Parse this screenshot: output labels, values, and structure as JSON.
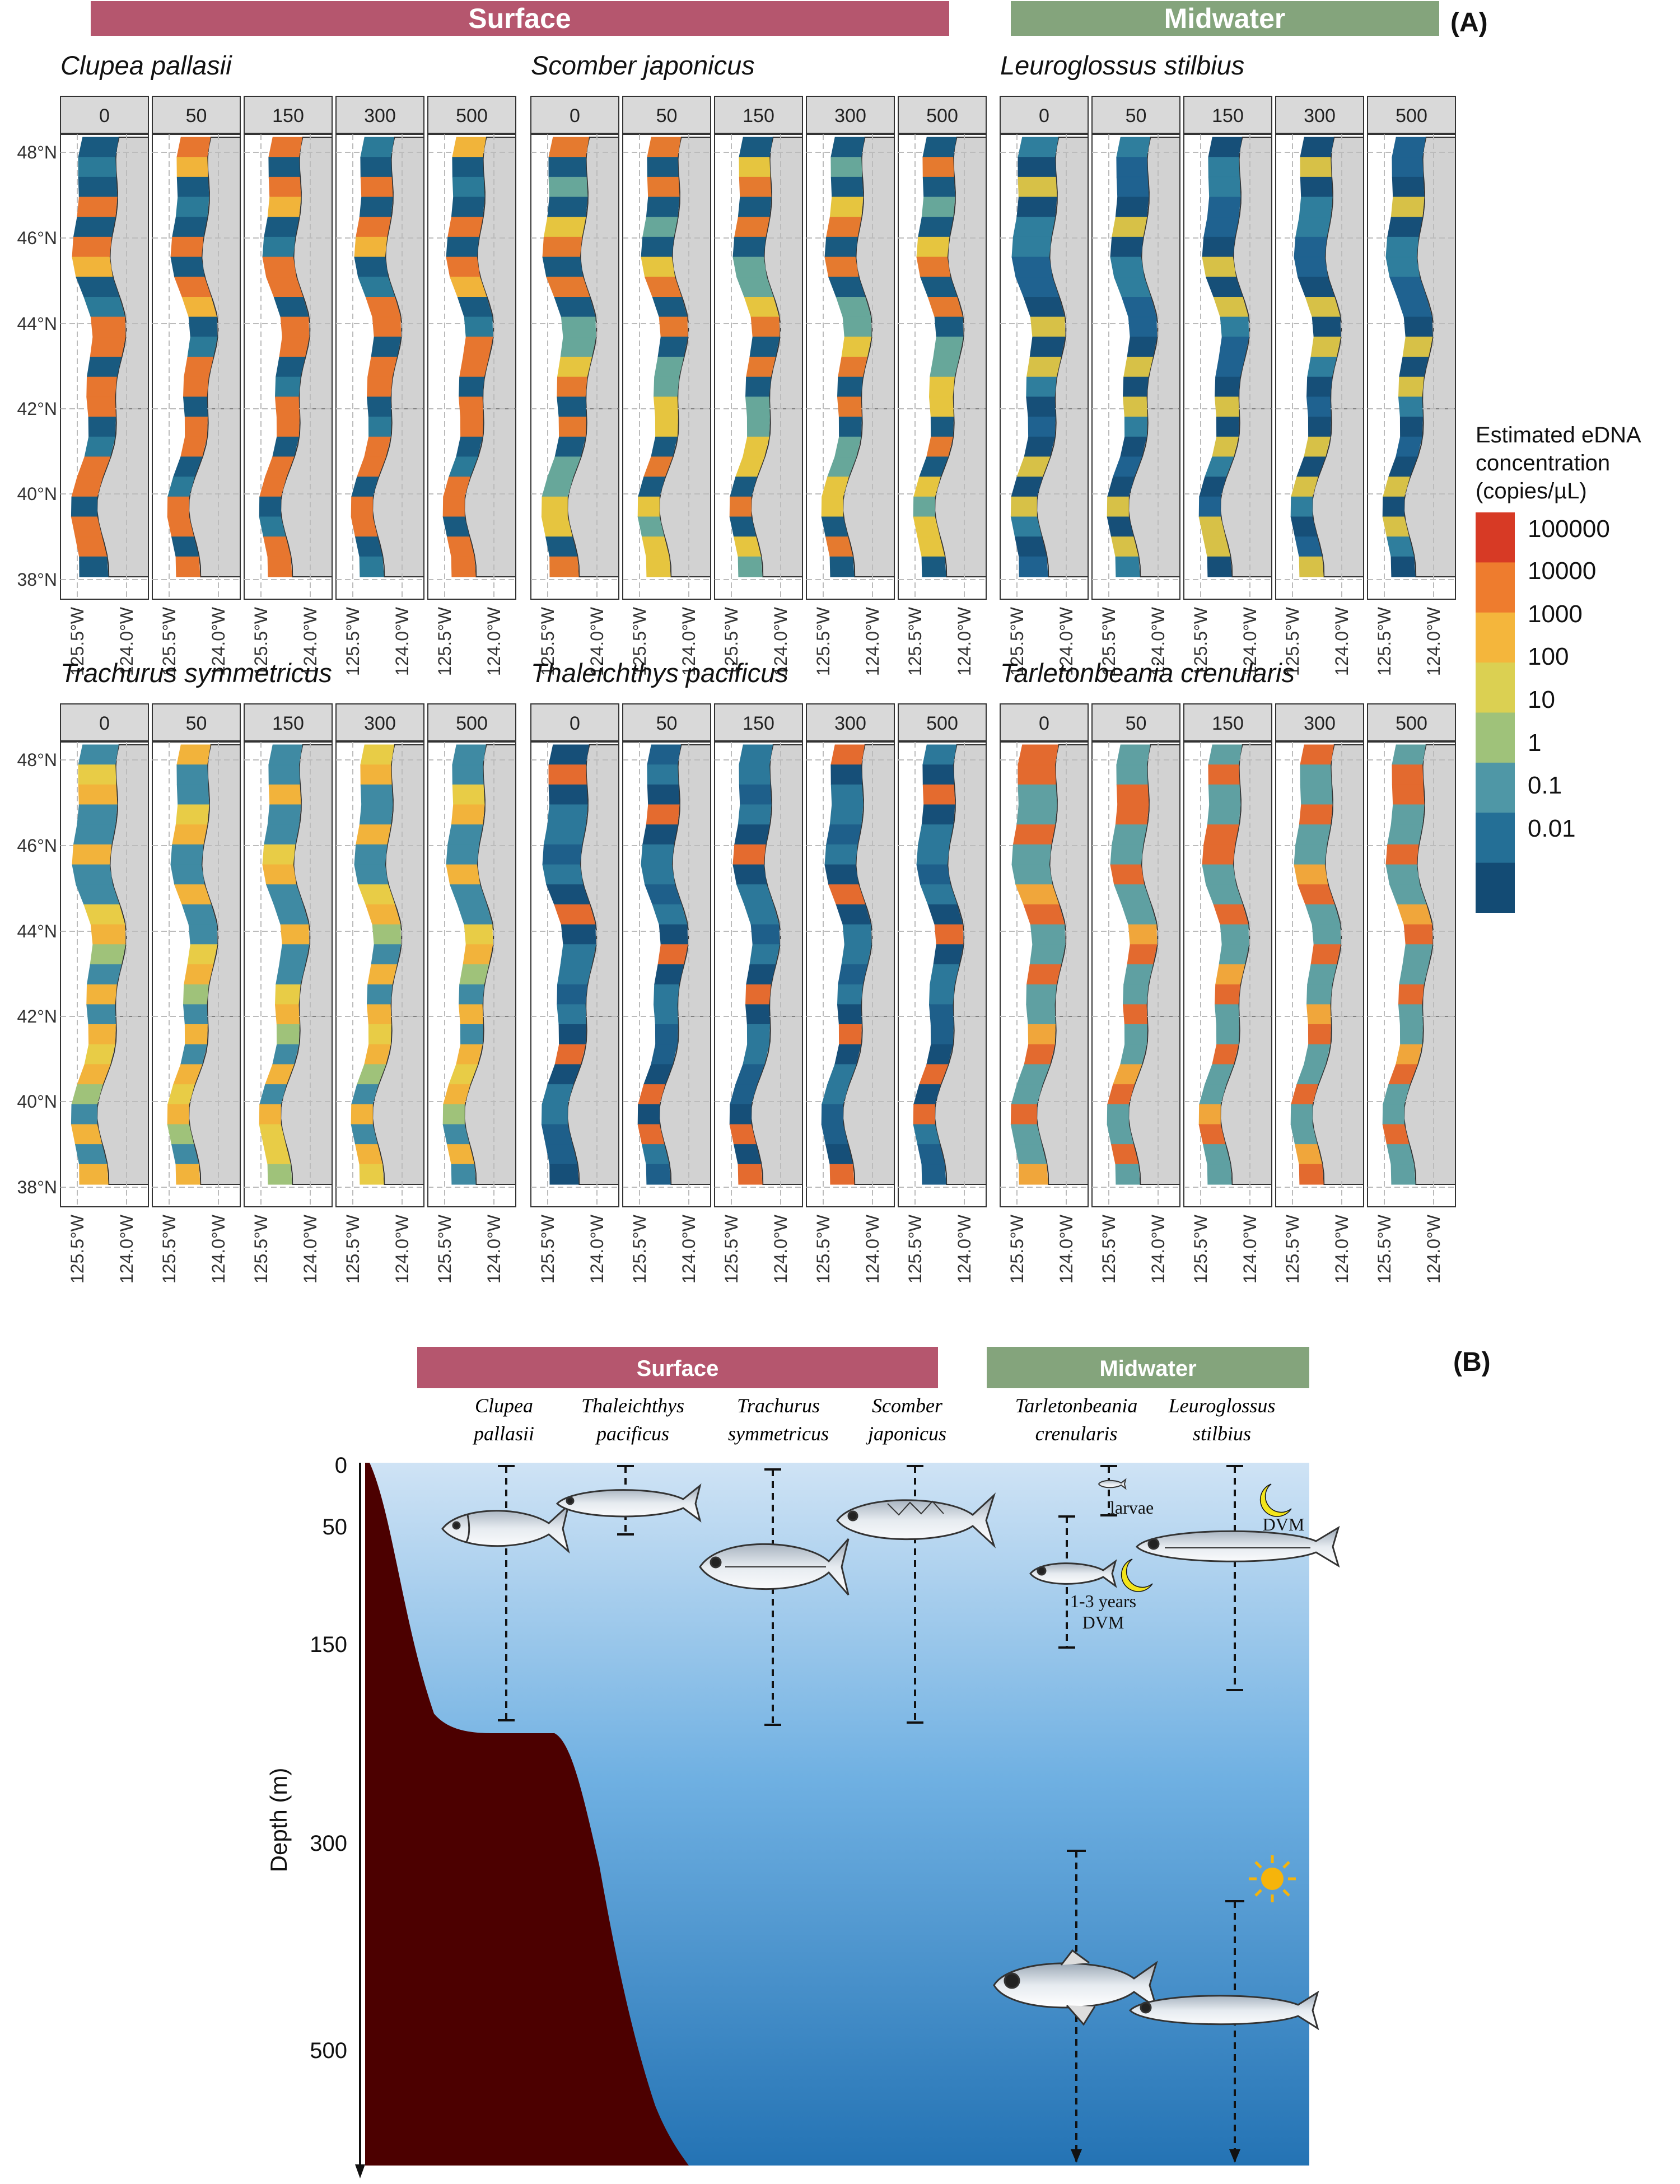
{
  "panel_a": {
    "panel_label": "(A)",
    "group_headers": [
      {
        "label": "Surface",
        "color": "#b5566e"
      },
      {
        "label": "Midwater",
        "color": "#84a47c"
      }
    ],
    "depth_facets": [
      "0",
      "50",
      "150",
      "300",
      "500"
    ],
    "lat_ticks": [
      "48°N",
      "46°N",
      "44°N",
      "42°N",
      "40°N",
      "38°N"
    ],
    "lon_ticks": [
      "125.5°W",
      "124.0°W"
    ],
    "species": [
      {
        "name": "Clupea pallasii",
        "row": 0,
        "col": 0,
        "palette": [
          "#195a80",
          "#2b7a98",
          "#f1b43a",
          "#e7762f"
        ]
      },
      {
        "name": "Scomber japonicus",
        "row": 0,
        "col": 1,
        "palette": [
          "#195a80",
          "#67a79a",
          "#e6c53f",
          "#e57a2f"
        ]
      },
      {
        "name": "Leuroglossus stilbius",
        "row": 0,
        "col": 2,
        "palette": [
          "#164f78",
          "#1f6290",
          "#2f7e9d",
          "#d7c147"
        ]
      },
      {
        "name": "Trachurus symmetricus",
        "row": 1,
        "col": 0,
        "palette": [
          "#f2b33b",
          "#e8cc46",
          "#9fc27a",
          "#3f8aa3"
        ]
      },
      {
        "name": "Thaleichthys pacificus",
        "row": 1,
        "col": 1,
        "palette": [
          "#164f78",
          "#1e5f8a",
          "#2c789a",
          "#e46b2f"
        ]
      },
      {
        "name": "Tarletonbeania crenularis",
        "row": 1,
        "col": 2,
        "palette": [
          "#e36a2f",
          "#f0a63b",
          "#d7cb4b",
          "#5fa0a2"
        ]
      }
    ],
    "legend": {
      "title": [
        "Estimated eDNA",
        "concentration",
        "(copies/µL)"
      ],
      "labels": [
        "100000",
        "10000",
        "1000",
        "100",
        "10",
        "1",
        "0.1",
        "0.01"
      ],
      "colors": [
        "#d73a25",
        "#ee7c2e",
        "#f4b63c",
        "#dbd052",
        "#9fc27a",
        "#4f97a6",
        "#246f96",
        "#134b74"
      ]
    }
  },
  "panel_b": {
    "panel_label": "(B)",
    "group_headers": [
      {
        "label": "Surface",
        "color": "#b5566e"
      },
      {
        "label": "Midwater",
        "color": "#84a47c"
      }
    ],
    "y_axis": {
      "label": "Depth (m)",
      "ticks": [
        "0",
        "50",
        "150",
        "300",
        "500"
      ]
    },
    "species": [
      {
        "line1": "Clupea",
        "line2": "pallasii"
      },
      {
        "line1": "Thaleichthys",
        "line2": "pacificus"
      },
      {
        "line1": "Trachurus",
        "line2": "symmetricus"
      },
      {
        "line1": "Scomber",
        "line2": "japonicus"
      },
      {
        "line1": "Tarletonbeania",
        "line2": "crenularis"
      },
      {
        "line1": "Leuroglossus",
        "line2": "stilbius"
      }
    ],
    "annotations": {
      "larvae": "larvae",
      "dvm_age_line1": "1-3 years",
      "dvm_age_line2": "DVM",
      "dvm": "DVM"
    }
  }
}
